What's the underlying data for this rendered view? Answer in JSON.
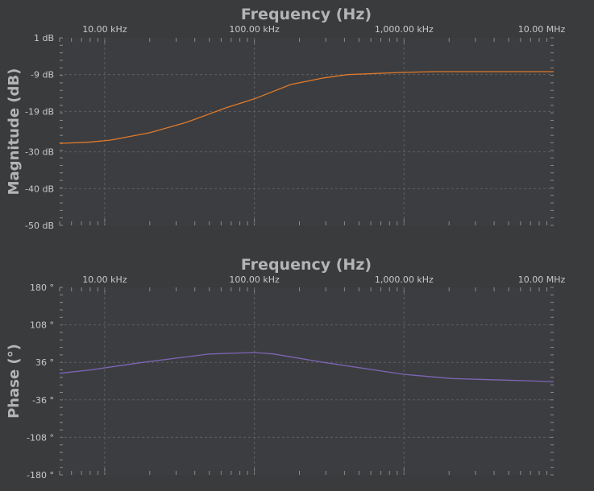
{
  "chart_data": [
    {
      "type": "line",
      "title": "Frequency (Hz)",
      "xlabel": "Frequency (Hz)",
      "ylabel": "Magnitude (dB)",
      "xscale": "log",
      "xlim": [
        5000,
        10000000
      ],
      "ylim": [
        -50,
        1
      ],
      "grid": true,
      "x_ticks": [
        {
          "value": 10000,
          "label": "10.00 kHz"
        },
        {
          "value": 100000,
          "label": "100.00 kHz"
        },
        {
          "value": 1000000,
          "label": "1,000.00 kHz"
        },
        {
          "value": 10000000,
          "label": "10.00 MHz"
        }
      ],
      "y_ticks": [
        {
          "value": 1,
          "label": "1 dB"
        },
        {
          "value": -9,
          "label": "-9 dB"
        },
        {
          "value": -19,
          "label": "-19 dB"
        },
        {
          "value": -30,
          "label": "-30 dB"
        },
        {
          "value": -40,
          "label": "-40 dB"
        },
        {
          "value": -50,
          "label": "-50 dB"
        }
      ],
      "series": [
        {
          "name": "Magnitude",
          "color": "#e07a2a",
          "x": [
            5000,
            7800,
            11000,
            20000,
            35000,
            65000,
            100000,
            175000,
            290000,
            420000,
            1000000,
            1600000,
            10000000
          ],
          "y": [
            -27.7,
            -27.4,
            -26.8,
            -24.8,
            -22,
            -18,
            -15.6,
            -11.7,
            -9.9,
            -9,
            -8.4,
            -8.2,
            -8.2
          ]
        }
      ]
    },
    {
      "type": "line",
      "title": "Frequency (Hz)",
      "xlabel": "Frequency (Hz)",
      "ylabel": "Phase (°)",
      "xscale": "log",
      "xlim": [
        5000,
        10000000
      ],
      "ylim": [
        -180,
        180
      ],
      "grid": true,
      "x_ticks": [
        {
          "value": 10000,
          "label": "10.00 kHz"
        },
        {
          "value": 100000,
          "label": "100.00 kHz"
        },
        {
          "value": 1000000,
          "label": "1,000.00 kHz"
        },
        {
          "value": 10000000,
          "label": "10.00 MHz"
        }
      ],
      "y_ticks": [
        {
          "value": 180,
          "label": "180 °"
        },
        {
          "value": 108,
          "label": "108 °"
        },
        {
          "value": 36,
          "label": "36 °"
        },
        {
          "value": -36,
          "label": "-36 °"
        },
        {
          "value": -108,
          "label": "-108 °"
        },
        {
          "value": -180,
          "label": "-180 °"
        }
      ],
      "series": [
        {
          "name": "Phase",
          "color": "#7d65b5",
          "x": [
            5000,
            7800,
            18000,
            50000,
            100000,
            135000,
            290000,
            1000000,
            2100000,
            10000000
          ],
          "y": [
            15,
            21,
            36,
            52,
            55,
            52,
            36,
            13,
            5,
            -1
          ]
        }
      ]
    }
  ]
}
